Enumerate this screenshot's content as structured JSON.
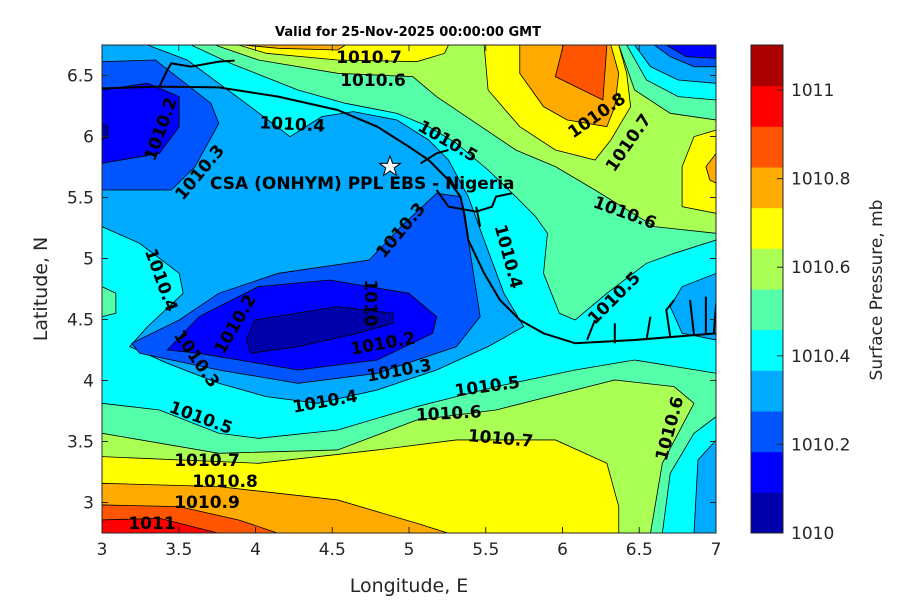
{
  "chart_data": {
    "type": "contour",
    "title": "Valid for 25-Nov-2025 00:00:00 GMT",
    "xlabel": "Longitude, E",
    "ylabel": "Latitude, N",
    "xlim": [
      3,
      7
    ],
    "ylim": [
      2.75,
      6.75
    ],
    "xticks": [
      "3",
      "3.5",
      "4",
      "4.5",
      "5",
      "5.5",
      "6",
      "6.5",
      "7"
    ],
    "xtick_values": [
      3,
      3.5,
      4,
      4.5,
      5,
      5.5,
      6,
      6.5,
      7
    ],
    "yticks": [
      "3",
      "3.5",
      "4",
      "4.5",
      "5",
      "5.5",
      "6",
      "6.5"
    ],
    "ytick_values": [
      3,
      3.5,
      4,
      4.5,
      5,
      5.5,
      6,
      6.5
    ],
    "colorbar": {
      "label": "Surface Pressure, mb",
      "range": [
        1010,
        1011.1
      ],
      "ticks": [
        "1010",
        "1010.2",
        "1010.4",
        "1010.6",
        "1010.8",
        "1011"
      ],
      "tick_values": [
        1010,
        1010.2,
        1010.4,
        1010.6,
        1010.8,
        1011
      ],
      "colors": [
        "#0000aa",
        "#0000ff",
        "#0055ff",
        "#00aaff",
        "#00ffff",
        "#55ffaa",
        "#aaff55",
        "#ffff00",
        "#ffaa00",
        "#ff5500",
        "#ff0000",
        "#aa0000"
      ]
    },
    "contour_levels": [
      1010,
      1010.1,
      1010.2,
      1010.3,
      1010.4,
      1010.5,
      1010.6,
      1010.7,
      1010.8,
      1010.9,
      1011
    ],
    "contour_labels": [
      "1010.7",
      "1010.6",
      "1010.2",
      "1010.3",
      "1010.4",
      "1010.5",
      "1010.8",
      "1010.7",
      "1010.6",
      "1010.3",
      "1010.4",
      "1010.5",
      "1010.4",
      "1010.2",
      "1010",
      "1010.3",
      "1010.2",
      "1010.3",
      "1010.4",
      "1010.5",
      "1010.5",
      "1010.6",
      "1010.7",
      "1010.6",
      "1010.7",
      "1010.8",
      "1010.9",
      "1011"
    ],
    "annotation": {
      "text": "CSA (ONHYM) PPL EBS - Nigeria",
      "marker": "star",
      "lon": 4.88,
      "lat": 5.75
    },
    "grid": false
  }
}
